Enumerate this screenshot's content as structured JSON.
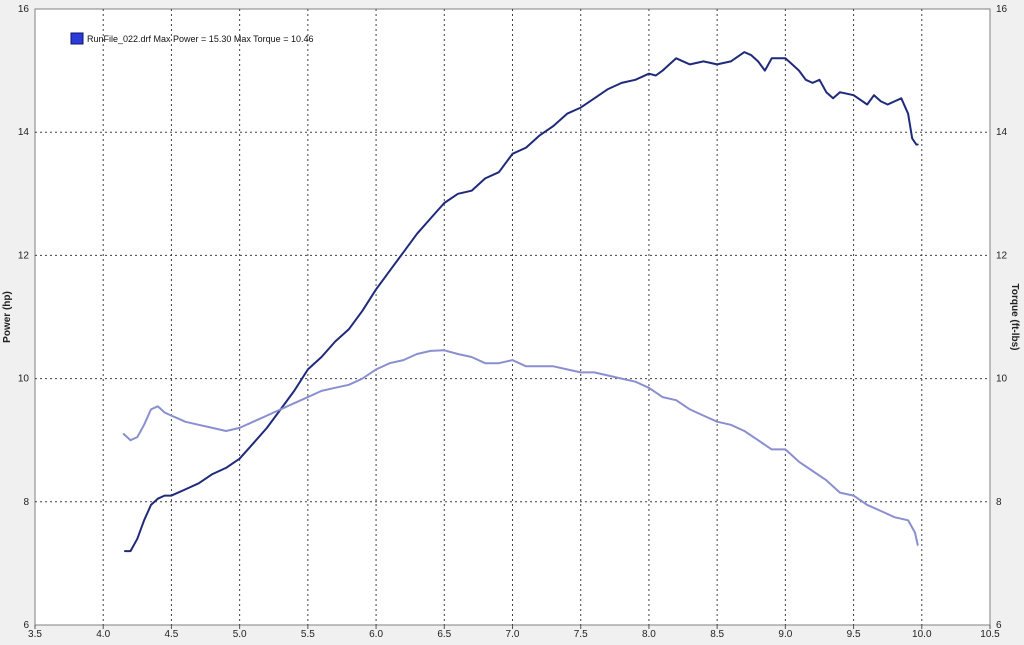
{
  "chart_data": {
    "type": "line",
    "legend_text": "RunFile_022.drf Max Power = 15.30 Max Torque = 10.46",
    "legend_placement": "top-left",
    "grid": true,
    "xlim": [
      3.5,
      10.5
    ],
    "x_ticks": [
      "3.5",
      "4.0",
      "4.5",
      "5.0",
      "5.5",
      "6.0",
      "6.5",
      "7.0",
      "7.5",
      "8.0",
      "8.5",
      "9.0",
      "9.5",
      "10.0",
      "10.5"
    ],
    "y_left": {
      "label": "Power (hp)",
      "lim": [
        6,
        16
      ],
      "ticks": [
        "6",
        "8",
        "10",
        "12",
        "14",
        "16"
      ]
    },
    "y_right": {
      "label": "Torque (ft-lbs)",
      "lim": [
        6,
        16
      ],
      "ticks": [
        "6",
        "8",
        "10",
        "12",
        "14",
        "16"
      ]
    },
    "colors": {
      "power": "#1f2a7a",
      "torque": "#8a8fd0",
      "legend_swatch": "#2b3bd6",
      "grid": "#404040",
      "plot_bg": "#ffffff"
    },
    "series": [
      {
        "key": "power",
        "axis": "left",
        "x": [
          4.16,
          4.2,
          4.25,
          4.3,
          4.35,
          4.4,
          4.45,
          4.5,
          4.55,
          4.6,
          4.7,
          4.8,
          4.9,
          5.0,
          5.1,
          5.2,
          5.3,
          5.4,
          5.5,
          5.6,
          5.7,
          5.8,
          5.9,
          6.0,
          6.1,
          6.2,
          6.3,
          6.4,
          6.5,
          6.6,
          6.7,
          6.8,
          6.9,
          7.0,
          7.1,
          7.2,
          7.3,
          7.4,
          7.5,
          7.6,
          7.7,
          7.8,
          7.9,
          8.0,
          8.05,
          8.1,
          8.15,
          8.2,
          8.3,
          8.4,
          8.5,
          8.6,
          8.7,
          8.75,
          8.8,
          8.85,
          8.9,
          9.0,
          9.05,
          9.1,
          9.15,
          9.2,
          9.25,
          9.3,
          9.35,
          9.4,
          9.5,
          9.6,
          9.65,
          9.7,
          9.75,
          9.8,
          9.85,
          9.9,
          9.93,
          9.96,
          9.97
        ],
        "y": [
          7.2,
          7.2,
          7.4,
          7.7,
          7.95,
          8.05,
          8.1,
          8.1,
          8.15,
          8.2,
          8.3,
          8.45,
          8.55,
          8.7,
          8.95,
          9.2,
          9.5,
          9.8,
          10.15,
          10.35,
          10.6,
          10.8,
          11.1,
          11.45,
          11.75,
          12.05,
          12.35,
          12.6,
          12.85,
          13.0,
          13.05,
          13.25,
          13.35,
          13.65,
          13.75,
          13.95,
          14.1,
          14.3,
          14.4,
          14.55,
          14.7,
          14.8,
          14.85,
          14.95,
          14.92,
          15.0,
          15.1,
          15.2,
          15.1,
          15.15,
          15.1,
          15.15,
          15.3,
          15.25,
          15.15,
          15.0,
          15.2,
          15.2,
          15.1,
          15.0,
          14.85,
          14.8,
          14.85,
          14.65,
          14.55,
          14.65,
          14.6,
          14.45,
          14.6,
          14.5,
          14.45,
          14.5,
          14.55,
          14.3,
          13.9,
          13.8,
          13.8
        ]
      },
      {
        "key": "torque",
        "axis": "right",
        "x": [
          4.15,
          4.2,
          4.25,
          4.3,
          4.35,
          4.4,
          4.45,
          4.5,
          4.55,
          4.6,
          4.7,
          4.8,
          4.9,
          5.0,
          5.1,
          5.2,
          5.3,
          5.4,
          5.5,
          5.6,
          5.7,
          5.8,
          5.9,
          6.0,
          6.1,
          6.2,
          6.3,
          6.4,
          6.5,
          6.6,
          6.7,
          6.8,
          6.9,
          7.0,
          7.1,
          7.2,
          7.3,
          7.4,
          7.5,
          7.6,
          7.7,
          7.8,
          7.9,
          8.0,
          8.1,
          8.2,
          8.3,
          8.4,
          8.5,
          8.6,
          8.7,
          8.8,
          8.9,
          9.0,
          9.1,
          9.2,
          9.3,
          9.4,
          9.5,
          9.6,
          9.7,
          9.8,
          9.9,
          9.95,
          9.97
        ],
        "y": [
          9.1,
          9.0,
          9.05,
          9.25,
          9.5,
          9.55,
          9.45,
          9.4,
          9.35,
          9.3,
          9.25,
          9.2,
          9.15,
          9.2,
          9.3,
          9.4,
          9.5,
          9.6,
          9.7,
          9.8,
          9.85,
          9.9,
          10.0,
          10.15,
          10.25,
          10.3,
          10.4,
          10.45,
          10.46,
          10.4,
          10.35,
          10.25,
          10.25,
          10.3,
          10.2,
          10.2,
          10.2,
          10.15,
          10.1,
          10.1,
          10.05,
          10.0,
          9.95,
          9.85,
          9.7,
          9.65,
          9.5,
          9.4,
          9.3,
          9.25,
          9.15,
          9.0,
          8.85,
          8.85,
          8.65,
          8.5,
          8.35,
          8.15,
          8.1,
          7.95,
          7.85,
          7.75,
          7.7,
          7.5,
          7.3
        ]
      }
    ]
  }
}
